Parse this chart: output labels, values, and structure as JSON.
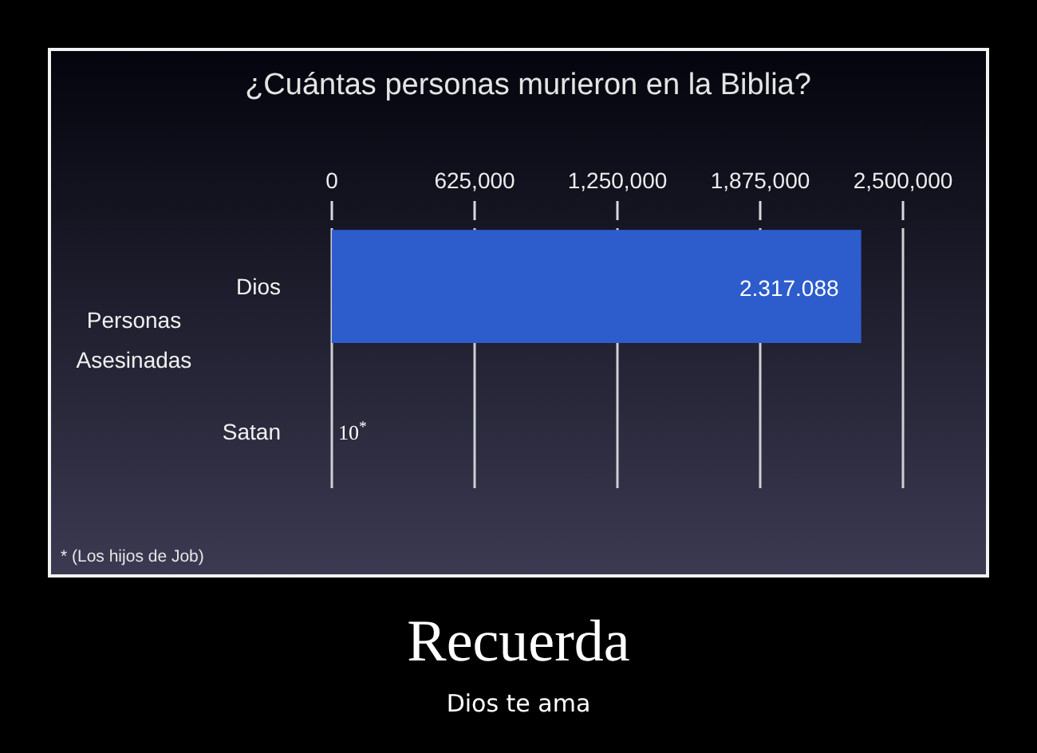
{
  "chart_data": {
    "type": "bar",
    "orientation": "horizontal",
    "title": "¿Cuántas personas murieron en la Biblia?",
    "ylabel": "Personas Asesinadas",
    "categories": [
      "Dios",
      "Satan"
    ],
    "values": [
      2317088,
      10
    ],
    "colors": [
      "#2d5ccc",
      "#8c3a20"
    ],
    "value_labels": [
      "2.317.088",
      "10$^{*}$"
    ],
    "xlim": [
      0,
      2500000
    ],
    "xticks": [
      0,
      {
        "value": 625000,
        "label": "625,000"
      },
      {
        "value": 1250000,
        "label": "1,250,000"
      },
      {
        "value": 1875000,
        "label": "1,875,000"
      },
      {
        "value": 2500000,
        "label": "2,500,000"
      }
    ],
    "grid": "x",
    "annotations": [
      "* (Los hijos de Job)",
      "Recuerda",
      "Dios te ama"
    ]
  }
}
